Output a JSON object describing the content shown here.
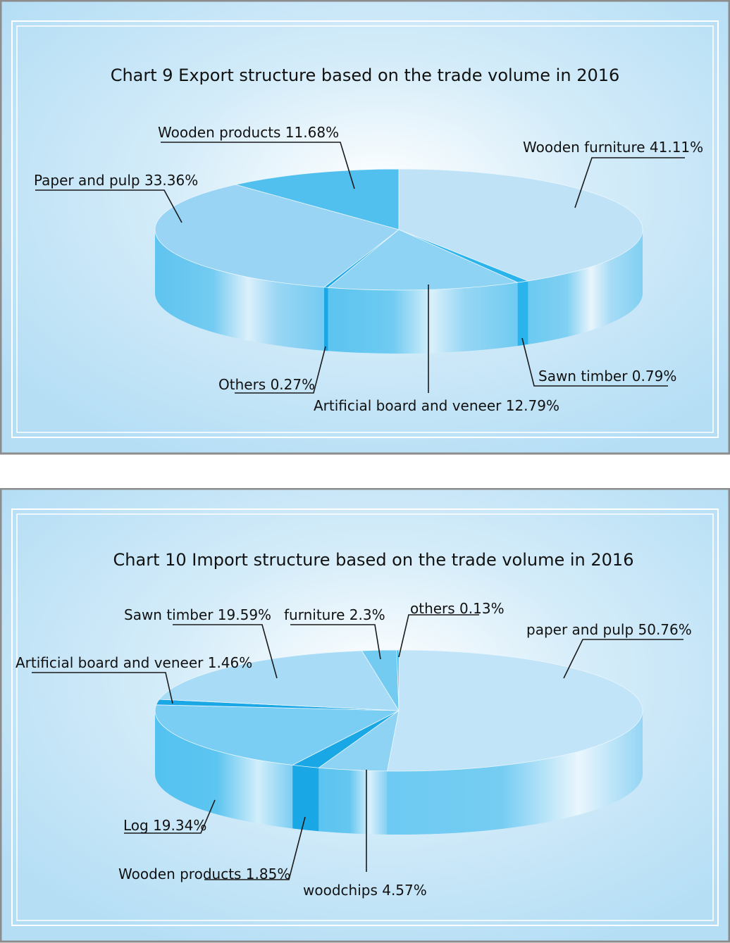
{
  "chart_data": [
    {
      "type": "pie",
      "title": "Chart 9 Export structure based on the trade volume in 2016",
      "categories": [
        "Wooden furniture",
        "Sawn timber",
        "Artificial board and veneer",
        "Others",
        "Paper and pulp",
        "Wooden products"
      ],
      "values": [
        41.11,
        0.79,
        12.79,
        0.27,
        33.36,
        11.68
      ],
      "labels": [
        "Wooden furniture 41.11%",
        "Sawn timber 0.79%",
        "Artificial board and veneer 12.79%",
        "Others 0.27%",
        "Paper and pulp 33.36%",
        "Wooden products 11.68%"
      ],
      "unit": "%",
      "colors": [
        "#bfe2f7",
        "#2bb3ec",
        "#8ed3f3",
        "#1aa7e6",
        "#9ad4f4",
        "#51c0ee"
      ],
      "style": "3d-pie"
    },
    {
      "type": "pie",
      "title": "Chart 10 Import structure based on the trade volume in 2016",
      "categories": [
        "paper and pulp",
        "woodchips",
        "Wooden products",
        "Log",
        "Artificial board and veneer",
        "Sawn timber",
        "furniture",
        "others"
      ],
      "values": [
        50.76,
        4.57,
        1.85,
        19.34,
        1.46,
        19.59,
        2.3,
        0.13
      ],
      "labels": [
        "paper and pulp 50.76%",
        "woodchips 4.57%",
        "Wooden products 1.85%",
        "Log 19.34%",
        "Artificial board and veneer  1.46%",
        "Sawn timber 19.59%",
        "furniture 2.3%",
        "others 0.13%"
      ],
      "unit": "%",
      "colors": [
        "#c2e4f8",
        "#8ed3f3",
        "#1aa7e6",
        "#7acdf3",
        "#1aa7e6",
        "#a8dbf5",
        "#74cbf2",
        "#2bb3ec"
      ],
      "style": "3d-pie"
    }
  ]
}
